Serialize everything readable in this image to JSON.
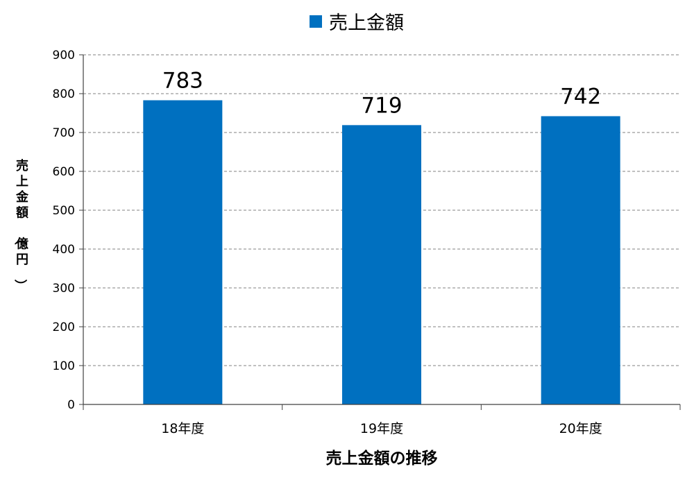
{
  "chart_data": {
    "type": "bar",
    "categories": [
      "18年度",
      "19年度",
      "20年度"
    ],
    "series": [
      {
        "name": "売上金額",
        "values": [
          783,
          719,
          742
        ],
        "color": "#0070C0"
      }
    ],
    "data_labels": [
      "783",
      "719",
      "742"
    ],
    "xlabel": "売上金額の推移",
    "ylabel": "売上金額（億円）",
    "ylim": [
      0,
      900
    ],
    "yticks": [
      0,
      100,
      200,
      300,
      400,
      500,
      600,
      700,
      800,
      900
    ],
    "grid": true,
    "legend": "top-center"
  }
}
